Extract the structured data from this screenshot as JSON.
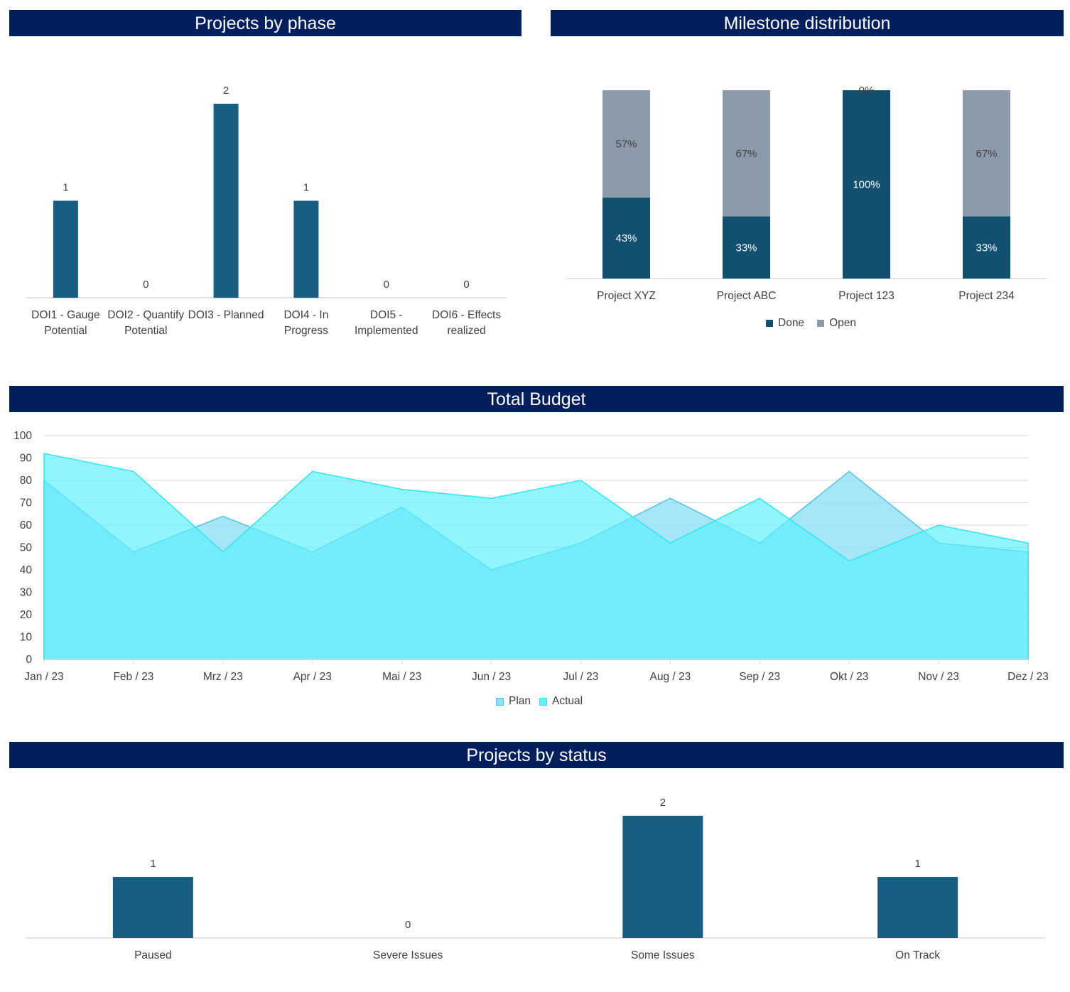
{
  "headers": {
    "phase": "Projects by phase",
    "milestone": "Milestone distribution",
    "budget": "Total Budget",
    "status": "Projects by status"
  },
  "colors": {
    "header_bg": "#001f5c",
    "bar": "#165e82",
    "done": "#134f6f",
    "open": "#8a9aa8",
    "plan_fill": "#8fe0f7",
    "plan_line": "#4fc3e5",
    "actual_fill": "#5cf0fa",
    "actual_line": "#2ee6f0"
  },
  "chart_data": [
    {
      "id": "phase",
      "type": "bar",
      "title": "Projects by phase",
      "categories": [
        [
          "DOI1 - Gauge",
          "Potential"
        ],
        [
          "DOI2 - Quantify",
          "Potential"
        ],
        [
          "DOI3 - Planned"
        ],
        [
          "DOI4 - In",
          "Progress"
        ],
        [
          "DOI5 -",
          "Implemented"
        ],
        [
          "DOI6 - Effects",
          "realized"
        ]
      ],
      "values": [
        1,
        0,
        2,
        1,
        0,
        0
      ],
      "ylim": [
        0,
        2
      ]
    },
    {
      "id": "milestone",
      "type": "bar",
      "stacked": true,
      "title": "Milestone distribution",
      "categories": [
        "Project XYZ",
        "Project ABC",
        "Project 123",
        "Project 234"
      ],
      "series": [
        {
          "name": "Done",
          "values": [
            43,
            33,
            100,
            33
          ],
          "labels": [
            "43%",
            "33%",
            "100%",
            "33%"
          ]
        },
        {
          "name": "Open",
          "values": [
            57,
            67,
            0,
            67
          ],
          "labels": [
            "57%",
            "67%",
            "0%",
            "67%"
          ]
        }
      ],
      "ylim": [
        0,
        100
      ],
      "legend": "bottom"
    },
    {
      "id": "budget",
      "type": "area",
      "title": "Total Budget",
      "categories": [
        "Jan / 23",
        "Feb / 23",
        "Mrz / 23",
        "Apr / 23",
        "Mai / 23",
        "Jun / 23",
        "Jul / 23",
        "Aug / 23",
        "Sep / 23",
        "Okt / 23",
        "Nov / 23",
        "Dez / 23"
      ],
      "series": [
        {
          "name": "Plan",
          "values": [
            80,
            48,
            64,
            48,
            68,
            40,
            52,
            72,
            52,
            84,
            52,
            48
          ]
        },
        {
          "name": "Actual",
          "values": [
            92,
            84,
            48,
            84,
            76,
            72,
            80,
            52,
            72,
            44,
            60,
            52
          ]
        }
      ],
      "yticks": [
        "0",
        "10",
        "20",
        "30",
        "40",
        "50",
        "60",
        "70",
        "80",
        "90",
        "100"
      ],
      "ylim": [
        0,
        100
      ],
      "grid": true,
      "legend": "bottom"
    },
    {
      "id": "status",
      "type": "bar",
      "title": "Projects by status",
      "categories": [
        "Paused",
        "Severe Issues",
        "Some Issues",
        "On Track"
      ],
      "values": [
        1,
        0,
        2,
        1
      ],
      "ylim": [
        0,
        2
      ]
    }
  ]
}
